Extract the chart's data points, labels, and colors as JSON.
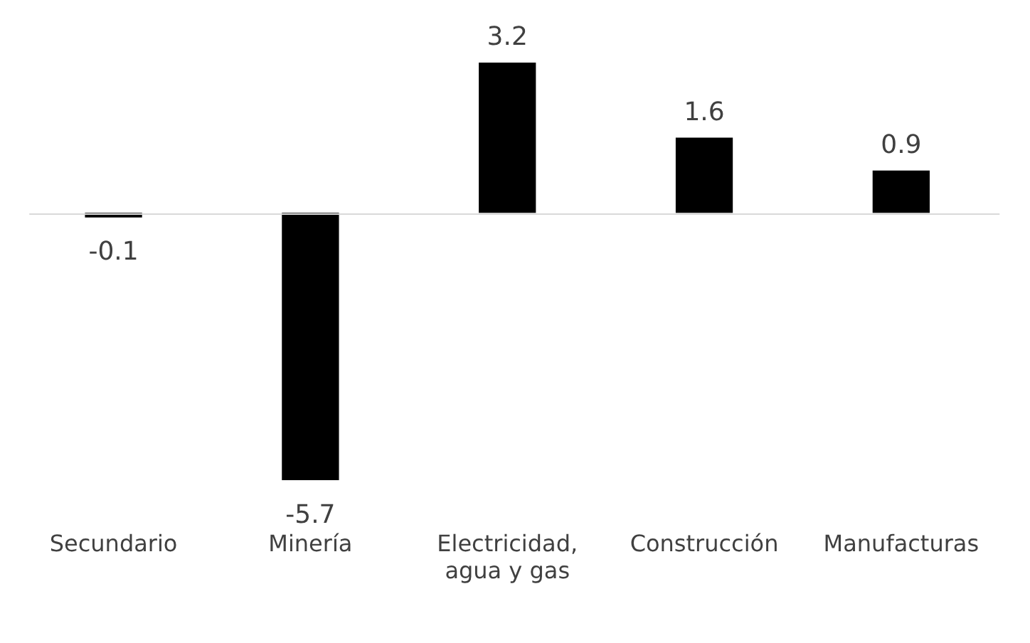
{
  "chart_data": {
    "type": "bar",
    "categories": [
      "Secundario",
      "Minería",
      "Electricidad, agua y gas",
      "Construcción",
      "Manufacturas"
    ],
    "values": [
      -0.1,
      -5.7,
      3.2,
      1.6,
      0.9
    ],
    "color": "#000000",
    "data_labels": true,
    "grid": false,
    "legend": false
  }
}
